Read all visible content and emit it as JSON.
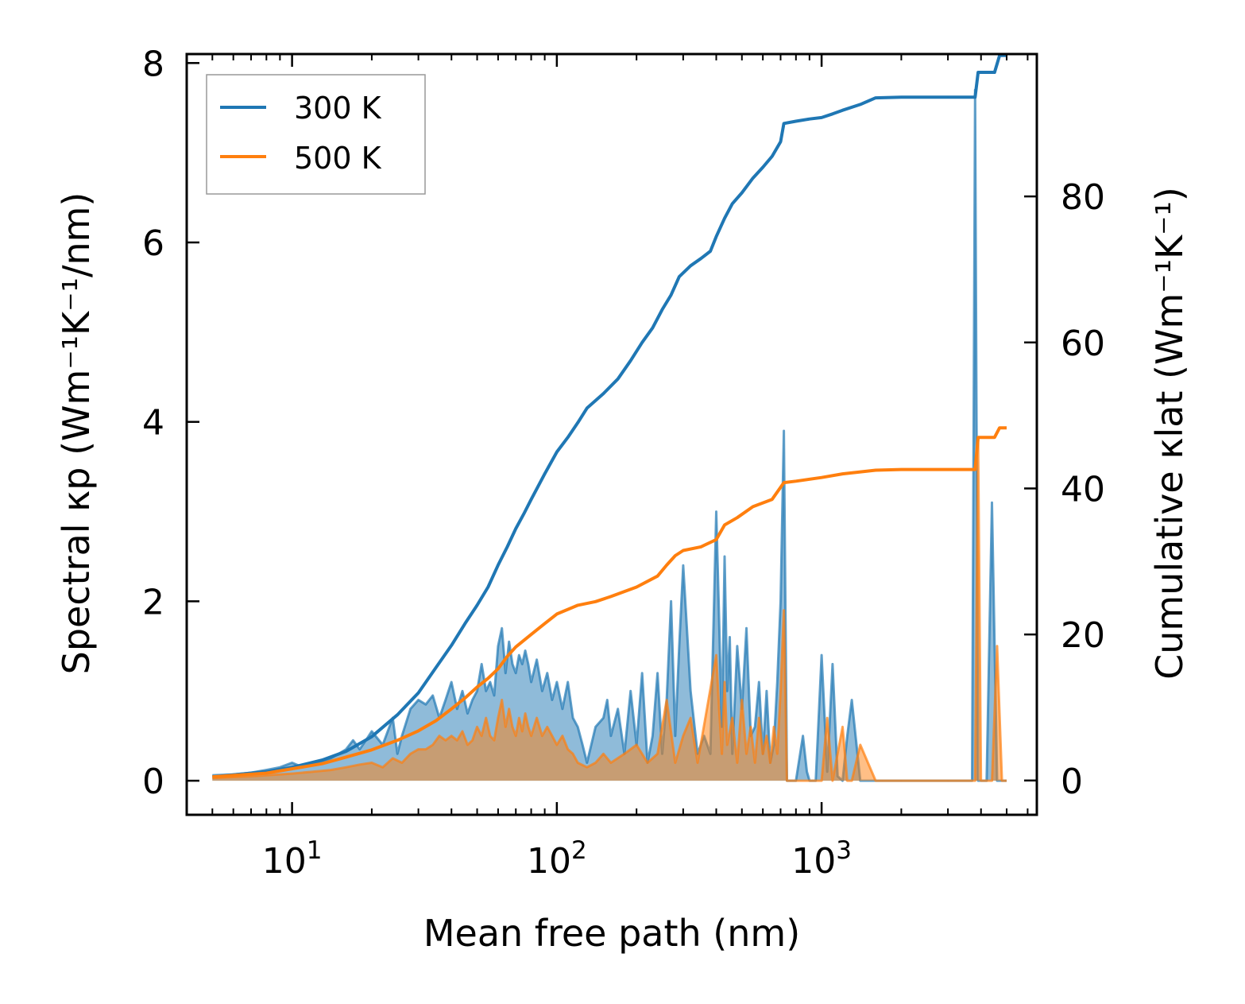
{
  "chart_data": {
    "type": "line",
    "xscale": "log",
    "xlabel": "Mean free path (nm)",
    "ylabel_left": "Spectral κp (Wm⁻¹K⁻¹/nm)",
    "ylabel_right": "Cumulative κlat (Wm⁻¹K⁻¹)",
    "xlim": [
      4,
      6500
    ],
    "ylim_left": [
      -0.38,
      8.1
    ],
    "ylim_right": [
      -4.7,
      99.5
    ],
    "x_ticks": [
      {
        "value": 10,
        "base": "10",
        "exp": "1"
      },
      {
        "value": 100,
        "base": "10",
        "exp": "2"
      },
      {
        "value": 1000,
        "base": "10",
        "exp": "3"
      }
    ],
    "y_ticks_left": [
      "0",
      "2",
      "4",
      "6",
      "8"
    ],
    "y_ticks_right": [
      "0",
      "20",
      "40",
      "60",
      "80"
    ],
    "legend": {
      "position": "top-left",
      "entries": [
        "300 K",
        "500 K"
      ]
    },
    "colors": {
      "series_300": "#1f77b4",
      "series_500": "#ff7f0e",
      "fill_300": "#1f77b4",
      "fill_500": "#ff7f0e"
    },
    "series": [
      {
        "name": "300 K",
        "kind": "cumulative",
        "axis": "right",
        "color": "#1f77b4",
        "x": [
          5,
          8,
          10,
          13,
          16,
          20,
          25,
          30,
          35,
          40,
          45,
          50,
          55,
          60,
          65,
          70,
          75,
          80,
          90,
          100,
          110,
          120,
          130,
          150,
          170,
          190,
          210,
          230,
          250,
          270,
          290,
          320,
          350,
          380,
          400,
          430,
          460,
          500,
          550,
          600,
          650,
          700,
          720,
          800,
          900,
          1000,
          1100,
          1200,
          1400,
          1600,
          2000,
          3000,
          3800,
          3900,
          4000,
          4500,
          4700,
          5000
        ],
        "y": [
          0.5,
          1.2,
          1.8,
          2.8,
          4.0,
          6.0,
          9.0,
          12.0,
          15.5,
          18.5,
          21.5,
          24.0,
          26.5,
          29.5,
          32.0,
          34.5,
          36.5,
          38.5,
          42.0,
          45.0,
          47.0,
          49.0,
          51.0,
          53.0,
          55.0,
          57.5,
          60.0,
          62.0,
          64.5,
          66.5,
          69.0,
          70.5,
          71.5,
          72.5,
          74.5,
          77.0,
          79.0,
          80.5,
          82.5,
          84.0,
          85.5,
          87.5,
          90.0,
          90.3,
          90.6,
          90.8,
          91.3,
          91.8,
          92.6,
          93.5,
          93.6,
          93.6,
          93.6,
          97.0,
          97.0,
          97.0,
          99.3,
          99.3
        ]
      },
      {
        "name": "500 K",
        "kind": "cumulative",
        "axis": "right",
        "color": "#ff7f0e",
        "x": [
          5,
          8,
          10,
          13,
          16,
          20,
          25,
          30,
          35,
          40,
          45,
          50,
          55,
          60,
          65,
          70,
          80,
          90,
          100,
          120,
          140,
          160,
          200,
          240,
          260,
          280,
          300,
          350,
          400,
          430,
          480,
          550,
          650,
          720,
          800,
          1000,
          1200,
          1600,
          2000,
          3000,
          3800,
          3900,
          4500,
          4700,
          5000
        ],
        "y": [
          0.5,
          1.0,
          1.6,
          2.3,
          3.2,
          4.2,
          5.5,
          6.8,
          8.2,
          9.8,
          11.3,
          12.8,
          14.0,
          15.3,
          17.0,
          18.3,
          20.0,
          21.5,
          22.8,
          24.0,
          24.5,
          25.2,
          26.5,
          28.0,
          29.5,
          30.8,
          31.5,
          32.0,
          33.0,
          35.0,
          36.0,
          37.5,
          38.5,
          40.8,
          41.0,
          41.5,
          42.0,
          42.5,
          42.6,
          42.6,
          42.6,
          47.0,
          47.0,
          48.3,
          48.3
        ]
      },
      {
        "name": "300 K spectral",
        "kind": "spectral",
        "axis": "left",
        "color": "#1f77b4",
        "x": [
          5,
          6,
          7,
          8,
          9,
          10,
          11,
          12,
          13,
          14,
          15,
          16,
          17,
          18,
          19,
          20,
          22,
          24,
          25,
          26,
          28,
          30,
          32,
          34,
          36,
          38,
          40,
          42,
          44,
          46,
          48,
          50,
          52,
          54,
          56,
          58,
          60,
          62,
          64,
          66,
          68,
          70,
          72,
          74,
          76,
          78,
          80,
          84,
          88,
          92,
          96,
          100,
          105,
          110,
          115,
          120,
          125,
          130,
          140,
          150,
          155,
          160,
          170,
          180,
          190,
          200,
          210,
          220,
          230,
          240,
          250,
          260,
          270,
          280,
          290,
          300,
          320,
          340,
          360,
          380,
          400,
          410,
          420,
          430,
          440,
          450,
          460,
          480,
          500,
          520,
          540,
          560,
          580,
          600,
          620,
          640,
          660,
          680,
          700,
          720,
          740,
          760,
          800,
          850,
          880,
          900,
          950,
          1000,
          1050,
          1100,
          1150,
          1200,
          1250,
          1300,
          1400,
          1500,
          1600,
          1700,
          2000,
          3000,
          3700,
          3800,
          3900,
          4000,
          4100,
          4200,
          4400,
          4600,
          4800,
          5000
        ],
        "y": [
          0.06,
          0.07,
          0.09,
          0.12,
          0.15,
          0.2,
          0.15,
          0.18,
          0.22,
          0.25,
          0.3,
          0.35,
          0.45,
          0.35,
          0.45,
          0.55,
          0.4,
          0.7,
          0.3,
          0.5,
          0.8,
          0.9,
          0.85,
          0.95,
          0.7,
          0.9,
          1.1,
          0.8,
          1.0,
          0.75,
          0.9,
          1.0,
          1.3,
          1.0,
          1.1,
          0.95,
          1.5,
          1.7,
          1.2,
          1.55,
          1.3,
          1.2,
          1.4,
          1.3,
          1.45,
          1.3,
          1.1,
          1.35,
          1.0,
          1.2,
          0.9,
          1.1,
          0.8,
          1.1,
          0.7,
          0.6,
          0.4,
          0.2,
          0.6,
          0.7,
          0.9,
          0.5,
          0.8,
          0.3,
          1.0,
          0.4,
          1.2,
          0.2,
          0.5,
          1.2,
          0.3,
          0.9,
          2.0,
          0.5,
          1.5,
          2.4,
          1.0,
          0.3,
          0.5,
          0.3,
          3.0,
          1.8,
          0.6,
          2.5,
          1.0,
          1.6,
          0.3,
          1.5,
          0.8,
          1.7,
          0.5,
          0.6,
          1.1,
          0.3,
          1.0,
          0.2,
          0.4,
          1.1,
          2.0,
          3.9,
          0.0,
          0.0,
          0.0,
          0.5,
          0.1,
          0.0,
          0.0,
          1.4,
          0.1,
          1.3,
          0.05,
          0.0,
          0.5,
          0.9,
          0.0,
          0.0,
          0.0,
          0.0,
          0.0,
          0.0,
          0.0,
          7.7,
          0.0,
          0.0,
          0.0,
          0.0,
          3.1,
          0.0,
          0.0,
          0.0
        ]
      },
      {
        "name": "500 K spectral",
        "kind": "spectral",
        "axis": "left",
        "color": "#ff7f0e",
        "x": [
          5,
          7,
          10,
          12,
          14,
          16,
          18,
          20,
          22,
          24,
          26,
          28,
          30,
          32,
          34,
          36,
          38,
          40,
          42,
          44,
          46,
          48,
          50,
          52,
          54,
          56,
          58,
          60,
          62,
          64,
          66,
          68,
          70,
          72,
          74,
          76,
          78,
          80,
          84,
          88,
          92,
          96,
          100,
          105,
          110,
          115,
          120,
          130,
          140,
          150,
          160,
          180,
          200,
          220,
          240,
          260,
          280,
          300,
          320,
          340,
          400,
          410,
          420,
          430,
          440,
          460,
          480,
          500,
          520,
          540,
          560,
          580,
          600,
          620,
          640,
          660,
          680,
          700,
          720,
          740,
          760,
          1000,
          1050,
          1100,
          1200,
          1250,
          1300,
          1400,
          1600,
          2000,
          3000,
          3800,
          3900,
          4000,
          4200,
          4400,
          4600,
          4800,
          5000
        ],
        "y": [
          0.03,
          0.05,
          0.08,
          0.1,
          0.12,
          0.15,
          0.18,
          0.2,
          0.15,
          0.25,
          0.2,
          0.3,
          0.35,
          0.35,
          0.4,
          0.5,
          0.45,
          0.5,
          0.45,
          0.55,
          0.4,
          0.45,
          0.6,
          0.5,
          0.7,
          0.5,
          0.45,
          0.7,
          0.9,
          0.6,
          0.8,
          0.6,
          0.5,
          0.7,
          0.55,
          0.75,
          0.6,
          0.5,
          0.7,
          0.5,
          0.6,
          0.5,
          0.4,
          0.5,
          0.35,
          0.3,
          0.2,
          0.15,
          0.2,
          0.3,
          0.2,
          0.3,
          0.4,
          0.2,
          0.3,
          0.9,
          0.2,
          0.5,
          0.7,
          0.2,
          1.4,
          0.8,
          0.3,
          1.1,
          0.4,
          0.7,
          0.2,
          0.9,
          0.3,
          0.6,
          0.2,
          0.7,
          0.3,
          0.5,
          0.2,
          0.6,
          0.3,
          1.0,
          1.9,
          0.0,
          0.0,
          0.0,
          0.7,
          0.0,
          0.6,
          0.0,
          0.0,
          0.4,
          0.0,
          0.0,
          0.0,
          0.0,
          3.8,
          0.0,
          0.0,
          0.0,
          1.5,
          0.0,
          0.0
        ]
      }
    ]
  }
}
